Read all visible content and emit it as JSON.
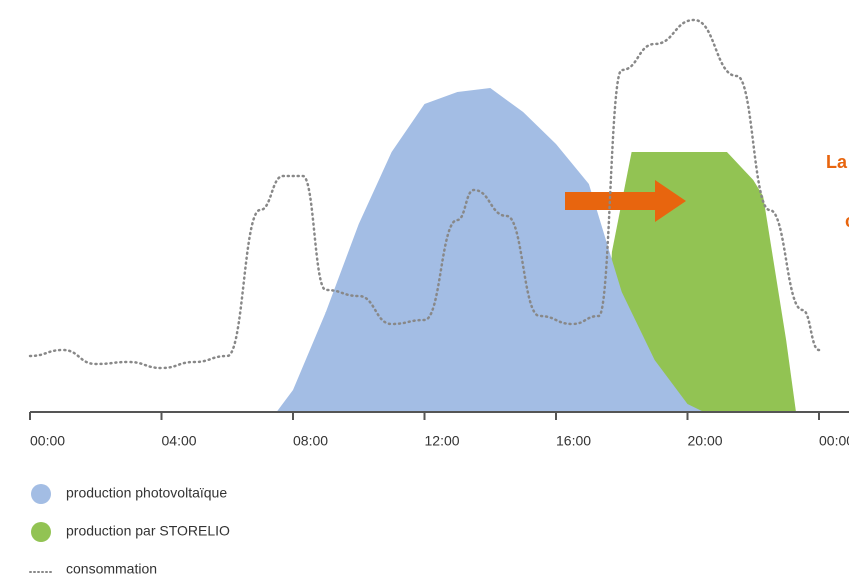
{
  "chart_data": {
    "type": "area",
    "xticks": [
      {
        "value": 0,
        "label": "00:00"
      },
      {
        "value": 4,
        "label": "04:00"
      },
      {
        "value": 8,
        "label": "08:00"
      },
      {
        "value": 12,
        "label": "12:00"
      },
      {
        "value": 16,
        "label": "16:00"
      },
      {
        "value": 20,
        "label": "20:00"
      },
      {
        "value": 24,
        "label": "00:00"
      }
    ],
    "xlim": [
      0,
      24
    ],
    "ylim": [
      0,
      100
    ],
    "annotations": [
      "La",
      "c"
    ],
    "series": [
      {
        "name": "production photovoltaïque",
        "color": "#a3bde4",
        "style": "area",
        "x": [
          7.5,
          8,
          9,
          10,
          11,
          12,
          13,
          14,
          15,
          16,
          17,
          18,
          19,
          20,
          20.5
        ],
        "values": [
          0,
          5.5,
          25,
          47,
          65,
          77,
          80,
          81,
          75,
          67,
          57,
          30,
          13,
          2,
          0
        ]
      },
      {
        "name": "production par STORELIO",
        "color": "#92c353",
        "style": "area",
        "x": [
          17.5,
          17.7,
          18.3,
          21.2,
          22,
          22.3,
          23,
          23.3
        ],
        "values": [
          0,
          40,
          65,
          65,
          58,
          54,
          18,
          0
        ]
      },
      {
        "color": "#5e9a4a",
        "style": "area",
        "x": [
          8.4,
          9,
          10,
          11,
          12,
          13,
          13.5,
          14.5,
          15.5,
          16.5,
          17.3,
          18,
          19,
          20,
          20.5
        ],
        "values": [
          0,
          25,
          29,
          22,
          23,
          48,
          54,
          49,
          24,
          22,
          24,
          20.5,
          8,
          2,
          0
        ]
      },
      {
        "name": "consommation",
        "color": "#888888",
        "style": "dotted",
        "x": [
          0,
          1,
          2,
          3,
          4,
          5,
          6,
          7,
          7.7,
          8.3,
          9,
          10,
          11,
          12,
          13,
          13.5,
          14.5,
          15.5,
          16.5,
          17.3,
          18,
          19,
          20.2,
          21.5,
          22.5,
          23.5,
          24
        ],
        "values": [
          14,
          15.5,
          12,
          12.5,
          11,
          12.5,
          14,
          50.5,
          59,
          59,
          30.5,
          29,
          22,
          23,
          48,
          55.5,
          49,
          24,
          22,
          24,
          85.5,
          92,
          98,
          84,
          50.5,
          25.5,
          15.5
        ]
      }
    ]
  }
}
